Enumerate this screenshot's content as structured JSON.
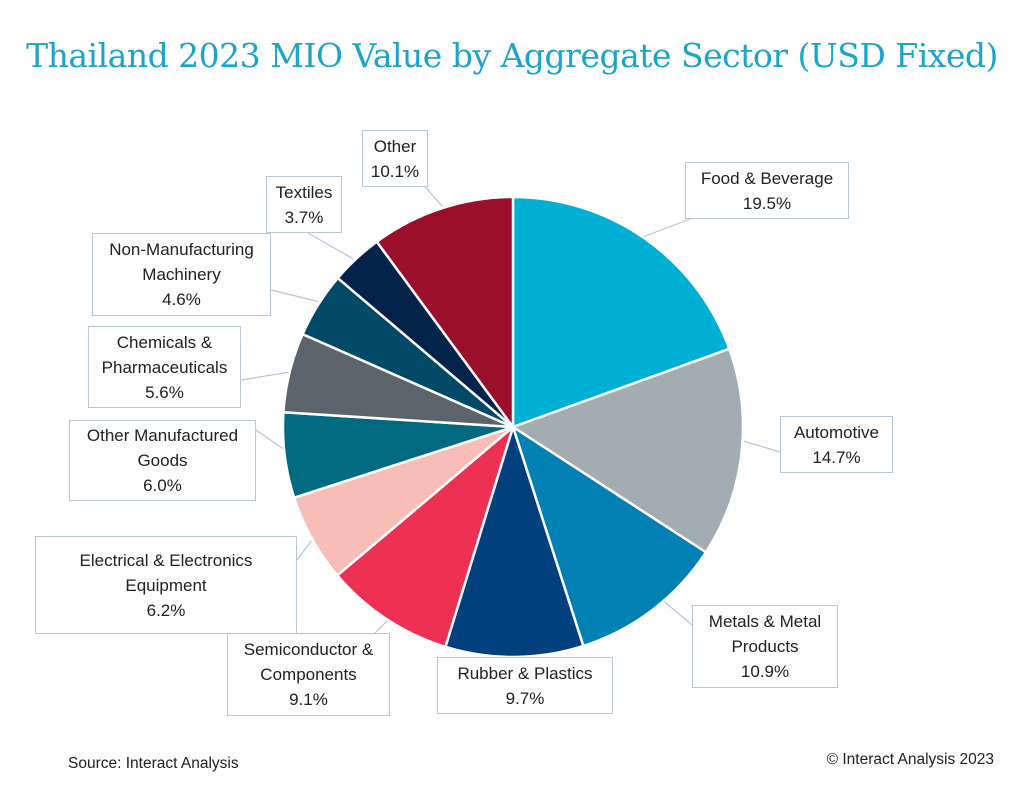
{
  "chart_data": {
    "type": "pie",
    "title": "Thailand 2023 MIO Value by Aggregate Sector (USD Fixed)",
    "start_angle": "12 o'clock",
    "direction": "clockwise",
    "slices": [
      {
        "label": "Food & Beverage",
        "value": 19.5,
        "display": "19.5%",
        "color": "#00b0d4"
      },
      {
        "label": "Automotive",
        "value": 14.7,
        "display": "14.7%",
        "color": "#a1acb3"
      },
      {
        "label": "Metals & Metal Products",
        "value": 10.9,
        "display": "10.9%",
        "color": "#0080b3"
      },
      {
        "label": "Rubber & Plastics",
        "value": 9.7,
        "display": "9.7%",
        "color": "#023f7d"
      },
      {
        "label": "Semiconductor & Components",
        "value": 9.1,
        "display": "9.1%",
        "color": "#ed3054"
      },
      {
        "label": "Electrical & Electronics Equipment",
        "value": 6.2,
        "display": "6.2%",
        "color": "#f8bdb6"
      },
      {
        "label": "Other Manufactured Goods",
        "value": 6.0,
        "display": "6.0%",
        "color": "#006a80"
      },
      {
        "label": "Chemicals & Pharmaceuticals",
        "value": 5.6,
        "display": "5.6%",
        "color": "#5b646d"
      },
      {
        "label": "Non-Manufacturing Machinery",
        "value": 4.6,
        "display": "4.6%",
        "color": "#004a68"
      },
      {
        "label": "Textiles",
        "value": 3.7,
        "display": "3.7%",
        "color": "#03234a"
      },
      {
        "label": "Other",
        "value": 10.1,
        "display": "10.1%",
        "color": "#9c0f2b"
      }
    ]
  },
  "footer": {
    "source": "Source: Interact Analysis",
    "copyright": "© Interact Analysis 2023"
  }
}
